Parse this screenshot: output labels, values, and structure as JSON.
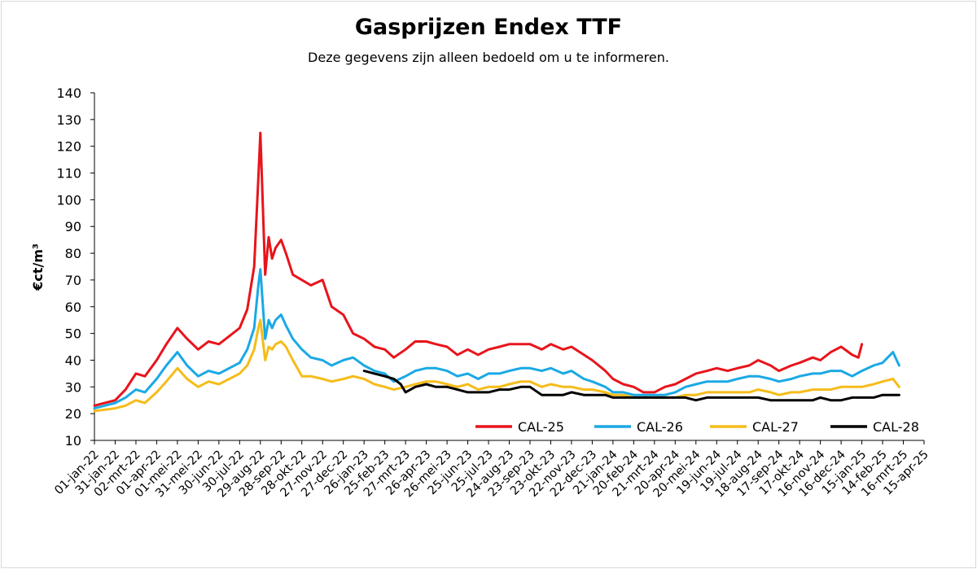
{
  "chart_data": {
    "type": "line",
    "title": "Gasprijzen Endex TTF",
    "subtitle": "Deze gegevens zijn alleen bedoeld om u te informeren.",
    "ylabel": "€ct/m³",
    "xlabel": "",
    "ylim": [
      10,
      140
    ],
    "yticks": [
      10,
      20,
      30,
      40,
      50,
      60,
      70,
      80,
      90,
      100,
      110,
      120,
      130,
      140
    ],
    "grid": false,
    "legend_position": "bottom-right",
    "x_tick_labels": [
      "01-jan-22",
      "31-jan-22",
      "02-mrt-22",
      "01-apr-22",
      "01-mei-22",
      "31-mei-22",
      "30-jun-22",
      "30-jul-22",
      "29-aug-22",
      "28-sep-22",
      "28-okt-22",
      "27-nov-22",
      "27-dec-22",
      "26-jan-23",
      "25-feb-23",
      "27-mrt-23",
      "26-apr-23",
      "26-mei-23",
      "25-jun-23",
      "25-jul-23",
      "24-aug-23",
      "23-sep-23",
      "23-okt-23",
      "22-nov-23",
      "22-dec-23",
      "21-jan-24",
      "20-feb-24",
      "21-mrt-24",
      "20-apr-24",
      "20-mei-24",
      "19-jun-24",
      "19-jul-24",
      "18-aug-24",
      "17-sep-24",
      "17-okt-24",
      "16-nov-24",
      "16-dec-24",
      "15-jan-25",
      "14-feb-25",
      "16-mrt-25",
      "15-apr-25"
    ],
    "series": [
      {
        "name": "CAL-25",
        "color": "#e8141b",
        "x": [
          "01-jan-22",
          "31-jan-22",
          "15-feb-22",
          "02-mrt-22",
          "15-mrt-22",
          "01-apr-22",
          "15-apr-22",
          "01-mei-22",
          "15-mei-22",
          "31-mei-22",
          "15-jun-22",
          "30-jun-22",
          "15-jul-22",
          "30-jul-22",
          "10-aug-22",
          "20-aug-22",
          "26-aug-22",
          "29-aug-22",
          "05-sep-22",
          "10-sep-22",
          "15-sep-22",
          "20-sep-22",
          "28-sep-22",
          "05-okt-22",
          "15-okt-22",
          "28-okt-22",
          "10-nov-22",
          "27-nov-22",
          "10-dec-22",
          "27-dec-22",
          "10-jan-23",
          "26-jan-23",
          "10-feb-23",
          "25-feb-23",
          "10-mrt-23",
          "27-mrt-23",
          "10-apr-23",
          "26-apr-23",
          "10-mei-23",
          "26-mei-23",
          "10-jun-23",
          "25-jun-23",
          "10-jul-23",
          "25-jul-23",
          "10-aug-23",
          "24-aug-23",
          "10-sep-23",
          "23-sep-23",
          "10-okt-23",
          "23-okt-23",
          "10-nov-23",
          "22-nov-23",
          "10-dec-23",
          "22-dec-23",
          "10-jan-24",
          "21-jan-24",
          "05-feb-24",
          "20-feb-24",
          "05-mrt-24",
          "21-mrt-24",
          "05-apr-24",
          "20-apr-24",
          "05-mei-24",
          "20-mei-24",
          "05-jun-24",
          "19-jun-24",
          "05-jul-24",
          "19-jul-24",
          "05-aug-24",
          "18-aug-24",
          "05-sep-24",
          "17-sep-24",
          "05-okt-24",
          "17-okt-24",
          "05-nov-24",
          "16-nov-24",
          "01-dec-24",
          "16-dec-24",
          "01-jan-25",
          "10-jan-25",
          "15-jan-25"
        ],
        "values": [
          23,
          25,
          29,
          35,
          34,
          40,
          46,
          52,
          48,
          44,
          47,
          46,
          49,
          52,
          59,
          75,
          108,
          125,
          72,
          86,
          78,
          82,
          85,
          80,
          72,
          70,
          68,
          70,
          60,
          57,
          50,
          48,
          45,
          44,
          41,
          44,
          47,
          47,
          46,
          45,
          42,
          44,
          42,
          44,
          45,
          46,
          46,
          46,
          44,
          46,
          44,
          45,
          42,
          40,
          36,
          33,
          31,
          30,
          28,
          28,
          30,
          31,
          33,
          35,
          36,
          37,
          36,
          37,
          38,
          40,
          38,
          36,
          38,
          39,
          41,
          40,
          43,
          45,
          42,
          41,
          46
        ]
      },
      {
        "name": "CAL-26",
        "color": "#1aa9e5",
        "x": [
          "01-jan-22",
          "31-jan-22",
          "15-feb-22",
          "02-mrt-22",
          "15-mrt-22",
          "01-apr-22",
          "15-apr-22",
          "01-mei-22",
          "15-mei-22",
          "31-mei-22",
          "15-jun-22",
          "30-jun-22",
          "15-jul-22",
          "30-jul-22",
          "10-aug-22",
          "20-aug-22",
          "26-aug-22",
          "29-aug-22",
          "05-sep-22",
          "10-sep-22",
          "15-sep-22",
          "20-sep-22",
          "28-sep-22",
          "05-okt-22",
          "15-okt-22",
          "28-okt-22",
          "10-nov-22",
          "27-nov-22",
          "10-dec-22",
          "27-dec-22",
          "10-jan-23",
          "26-jan-23",
          "10-feb-23",
          "25-feb-23",
          "10-mrt-23",
          "27-mrt-23",
          "10-apr-23",
          "26-apr-23",
          "10-mei-23",
          "26-mei-23",
          "10-jun-23",
          "25-jun-23",
          "10-jul-23",
          "25-jul-23",
          "10-aug-23",
          "24-aug-23",
          "10-sep-23",
          "23-sep-23",
          "10-okt-23",
          "23-okt-23",
          "10-nov-23",
          "22-nov-23",
          "10-dec-23",
          "22-dec-23",
          "10-jan-24",
          "21-jan-24",
          "05-feb-24",
          "20-feb-24",
          "05-mrt-24",
          "21-mrt-24",
          "05-apr-24",
          "20-apr-24",
          "05-mei-24",
          "20-mei-24",
          "05-jun-24",
          "19-jun-24",
          "05-jul-24",
          "19-jul-24",
          "05-aug-24",
          "18-aug-24",
          "05-sep-24",
          "17-sep-24",
          "05-okt-24",
          "17-okt-24",
          "05-nov-24",
          "16-nov-24",
          "01-dec-24",
          "16-dec-24",
          "01-jan-25",
          "15-jan-25",
          "01-feb-25",
          "14-feb-25",
          "01-mrt-25",
          "10-mrt-25"
        ],
        "values": [
          22,
          24,
          26,
          29,
          28,
          33,
          38,
          43,
          38,
          34,
          36,
          35,
          37,
          39,
          44,
          52,
          68,
          74,
          48,
          55,
          52,
          55,
          57,
          53,
          48,
          44,
          41,
          40,
          38,
          40,
          41,
          38,
          36,
          35,
          32,
          34,
          36,
          37,
          37,
          36,
          34,
          35,
          33,
          35,
          35,
          36,
          37,
          37,
          36,
          37,
          35,
          36,
          33,
          32,
          30,
          28,
          28,
          27,
          27,
          27,
          27,
          28,
          30,
          31,
          32,
          32,
          32,
          33,
          34,
          34,
          33,
          32,
          33,
          34,
          35,
          35,
          36,
          36,
          34,
          36,
          38,
          39,
          43,
          38
        ]
      },
      {
        "name": "CAL-27",
        "color": "#f5bc1a",
        "x": [
          "01-jan-22",
          "31-jan-22",
          "15-feb-22",
          "02-mrt-22",
          "15-mrt-22",
          "01-apr-22",
          "15-apr-22",
          "01-mei-22",
          "15-mei-22",
          "31-mei-22",
          "15-jun-22",
          "30-jun-22",
          "15-jul-22",
          "30-jul-22",
          "10-aug-22",
          "20-aug-22",
          "26-aug-22",
          "29-aug-22",
          "05-sep-22",
          "10-sep-22",
          "15-sep-22",
          "20-sep-22",
          "28-sep-22",
          "05-okt-22",
          "15-okt-22",
          "28-okt-22",
          "10-nov-22",
          "27-nov-22",
          "10-dec-22",
          "27-dec-22",
          "10-jan-23",
          "26-jan-23",
          "10-feb-23",
          "25-feb-23",
          "10-mrt-23",
          "27-mrt-23",
          "10-apr-23",
          "26-apr-23",
          "10-mei-23",
          "26-mei-23",
          "10-jun-23",
          "25-jun-23",
          "10-jul-23",
          "25-jul-23",
          "10-aug-23",
          "24-aug-23",
          "10-sep-23",
          "23-sep-23",
          "10-okt-23",
          "23-okt-23",
          "10-nov-23",
          "22-nov-23",
          "10-dec-23",
          "22-dec-23",
          "10-jan-24",
          "21-jan-24",
          "05-feb-24",
          "20-feb-24",
          "05-mrt-24",
          "21-mrt-24",
          "05-apr-24",
          "20-apr-24",
          "05-mei-24",
          "20-mei-24",
          "05-jun-24",
          "19-jun-24",
          "05-jul-24",
          "19-jul-24",
          "05-aug-24",
          "18-aug-24",
          "05-sep-24",
          "17-sep-24",
          "05-okt-24",
          "17-okt-24",
          "05-nov-24",
          "16-nov-24",
          "01-dec-24",
          "16-dec-24",
          "01-jan-25",
          "15-jan-25",
          "01-feb-25",
          "14-feb-25",
          "01-mrt-25",
          "10-mrt-25"
        ],
        "values": [
          21,
          22,
          23,
          25,
          24,
          28,
          32,
          37,
          33,
          30,
          32,
          31,
          33,
          35,
          38,
          44,
          52,
          55,
          40,
          45,
          44,
          46,
          47,
          45,
          40,
          34,
          34,
          33,
          32,
          33,
          34,
          33,
          31,
          30,
          29,
          30,
          31,
          32,
          32,
          31,
          30,
          31,
          29,
          30,
          30,
          31,
          32,
          32,
          30,
          31,
          30,
          30,
          29,
          29,
          28,
          27,
          27,
          26,
          26,
          26,
          26,
          26,
          27,
          27,
          28,
          28,
          28,
          28,
          28,
          29,
          28,
          27,
          28,
          28,
          29,
          29,
          29,
          30,
          30,
          30,
          31,
          32,
          33,
          30
        ]
      },
      {
        "name": "CAL-28",
        "color": "#000000",
        "x": [
          "26-jan-23",
          "10-feb-23",
          "25-feb-23",
          "10-mrt-23",
          "20-mrt-23",
          "27-mrt-23",
          "10-apr-23",
          "26-apr-23",
          "10-mei-23",
          "26-mei-23",
          "10-jun-23",
          "25-jun-23",
          "10-jul-23",
          "25-jul-23",
          "10-aug-23",
          "24-aug-23",
          "10-sep-23",
          "23-sep-23",
          "10-okt-23",
          "23-okt-23",
          "10-nov-23",
          "22-nov-23",
          "10-dec-23",
          "22-dec-23",
          "10-jan-24",
          "21-jan-24",
          "05-feb-24",
          "20-feb-24",
          "05-mrt-24",
          "21-mrt-24",
          "05-apr-24",
          "20-apr-24",
          "05-mei-24",
          "20-mei-24",
          "05-jun-24",
          "19-jun-24",
          "05-jul-24",
          "19-jul-24",
          "05-aug-24",
          "18-aug-24",
          "05-sep-24",
          "17-sep-24",
          "05-okt-24",
          "17-okt-24",
          "05-nov-24",
          "16-nov-24",
          "01-dec-24",
          "16-dec-24",
          "01-jan-25",
          "15-jan-25",
          "01-feb-25",
          "14-feb-25",
          "01-mrt-25",
          "10-mrt-25"
        ],
        "values": [
          36,
          35,
          34,
          33,
          31,
          28,
          30,
          31,
          30,
          30,
          29,
          28,
          28,
          28,
          29,
          29,
          30,
          30,
          27,
          27,
          27,
          28,
          27,
          27,
          27,
          26,
          26,
          26,
          26,
          26,
          26,
          26,
          26,
          25,
          26,
          26,
          26,
          26,
          26,
          26,
          25,
          25,
          25,
          25,
          25,
          26,
          25,
          25,
          26,
          26,
          26,
          27,
          27,
          27
        ]
      }
    ]
  }
}
